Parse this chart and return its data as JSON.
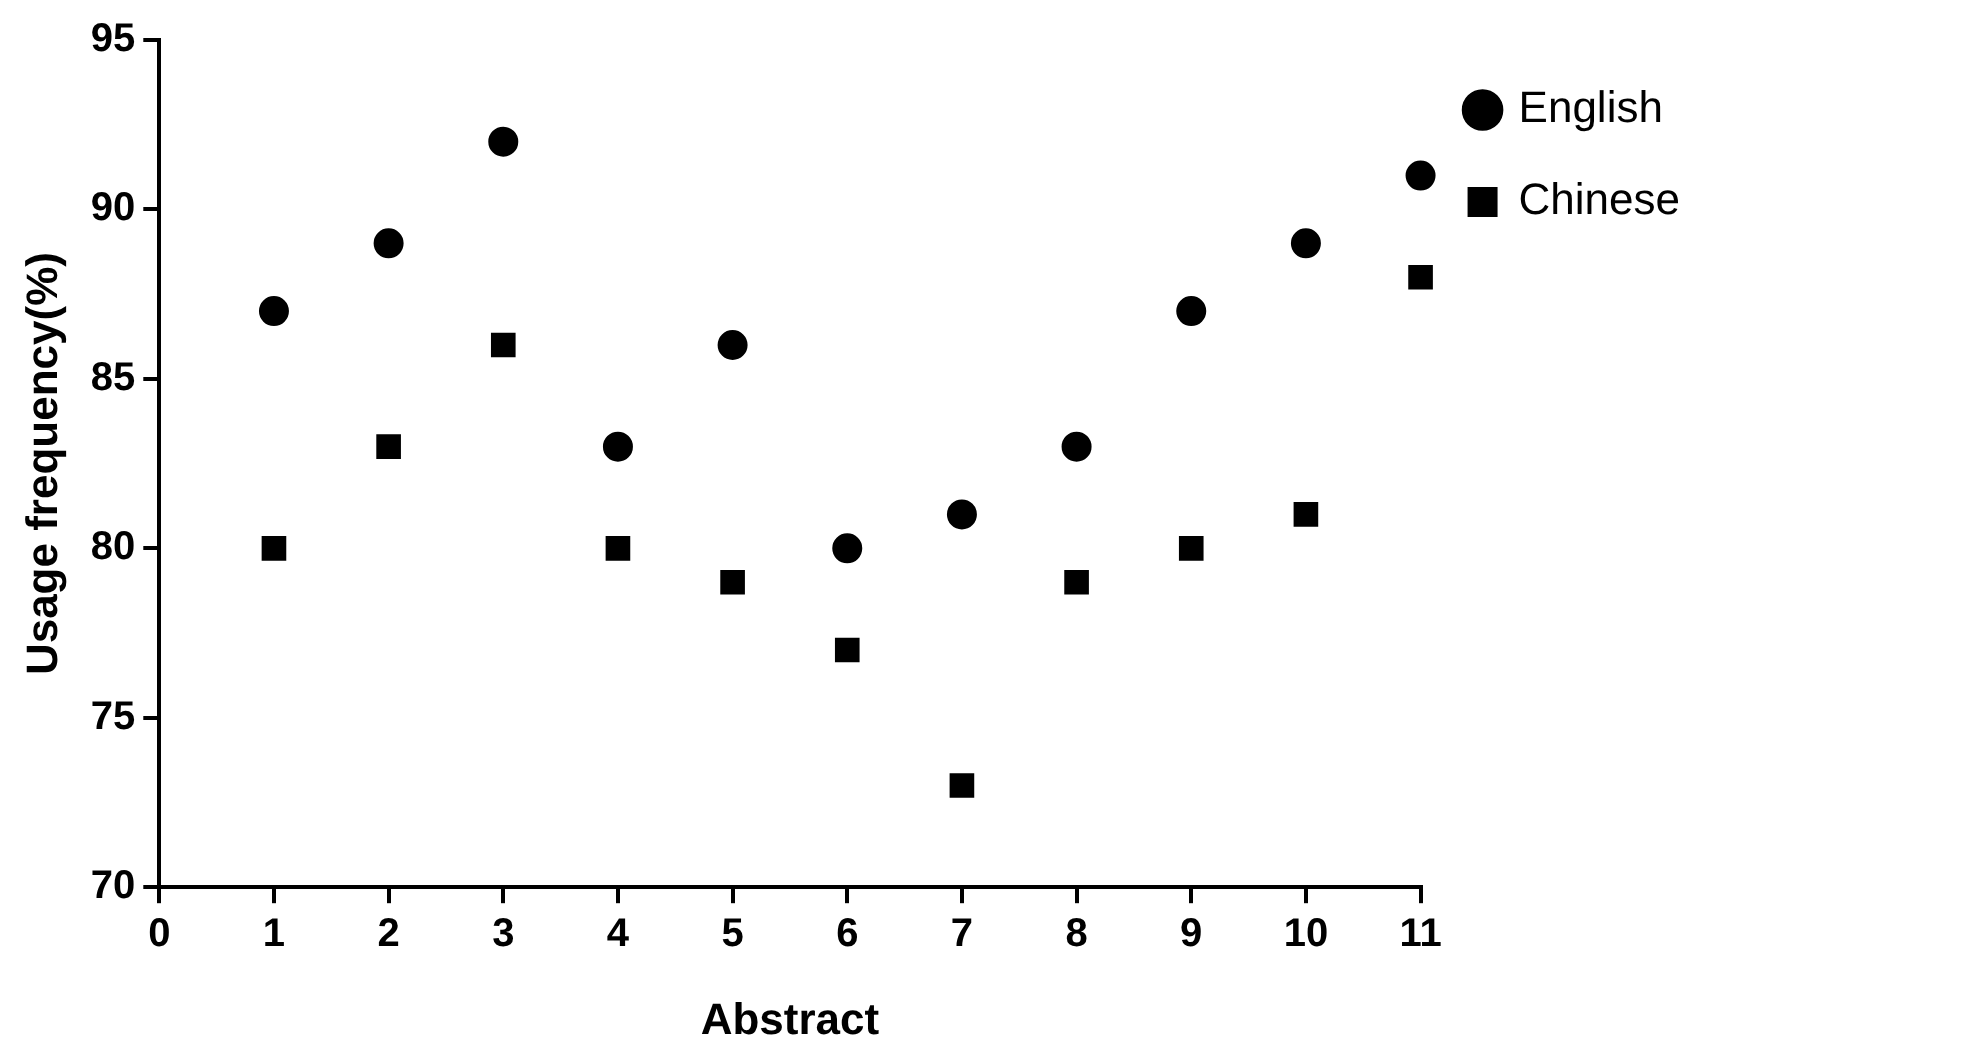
{
  "chart_data": {
    "type": "scatter",
    "xlabel": "Abstract",
    "ylabel": "Usage frequency(%)",
    "x": [
      1,
      2,
      3,
      4,
      5,
      6,
      7,
      8,
      9,
      10,
      11
    ],
    "series": [
      {
        "name": "English",
        "color": "#000000",
        "marker": "circle",
        "values": [
          87,
          89,
          92,
          83,
          86,
          80,
          81,
          83,
          87,
          89,
          91
        ]
      },
      {
        "name": "Chinese",
        "color": "#000000",
        "marker": "square",
        "values": [
          80,
          83,
          86,
          80,
          79,
          77,
          73,
          79,
          80,
          81,
          88
        ]
      }
    ],
    "xlim": [
      0,
      11
    ],
    "xticks": [
      0,
      1,
      2,
      3,
      4,
      5,
      6,
      7,
      8,
      9,
      10,
      11
    ],
    "ylim": [
      70,
      95
    ],
    "yticks": [
      70,
      75,
      80,
      85,
      90,
      95
    ],
    "grid": false,
    "legend": "top right"
  }
}
